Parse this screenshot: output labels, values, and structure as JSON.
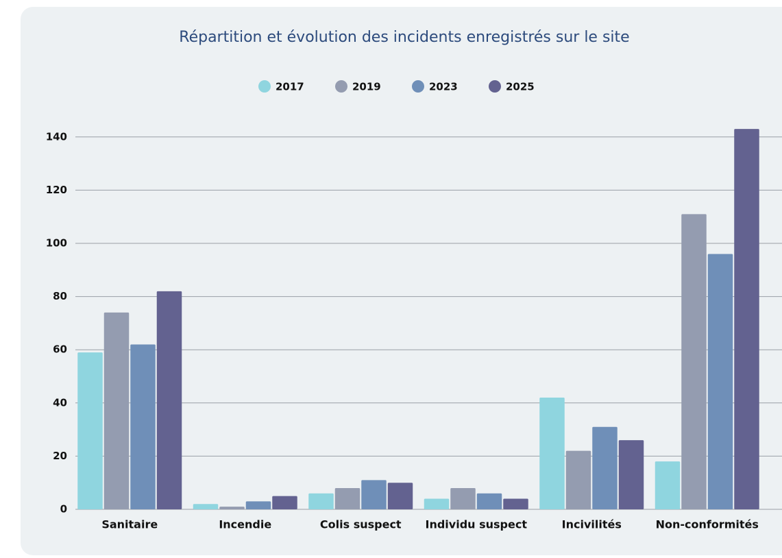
{
  "chart_data": {
    "type": "bar",
    "title": "Répartition et évolution des incidents enregistrés sur le site",
    "categories": [
      "Sanitaire",
      "Incendie",
      "Colis suspect",
      "Individu suspect",
      "Incivilités",
      "Non-conformités"
    ],
    "series": [
      {
        "name": "2017",
        "color": "#8fd5df",
        "values": [
          59,
          2,
          6,
          4,
          42,
          18
        ]
      },
      {
        "name": "2019",
        "color": "#949cb0",
        "values": [
          74,
          1,
          8,
          8,
          22,
          111
        ]
      },
      {
        "name": "2023",
        "color": "#6f8fb8",
        "values": [
          62,
          3,
          11,
          6,
          31,
          96
        ]
      },
      {
        "name": "2025",
        "color": "#636290",
        "values": [
          82,
          5,
          10,
          4,
          26,
          143
        ]
      }
    ],
    "ylim": [
      0,
      150
    ],
    "yticks": [
      0,
      20,
      40,
      60,
      80,
      100,
      120,
      140
    ],
    "grid": true,
    "legend": "top"
  }
}
